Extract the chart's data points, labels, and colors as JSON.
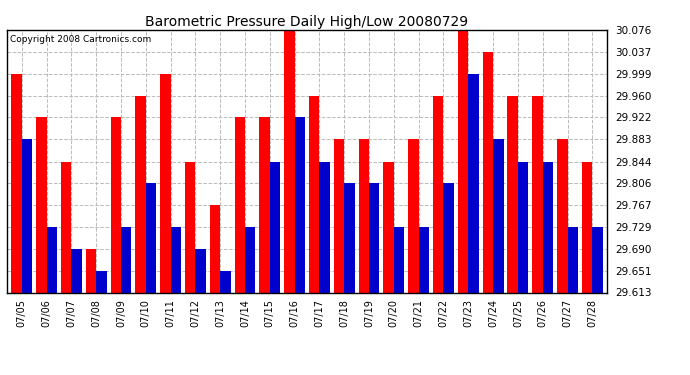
{
  "title": "Barometric Pressure Daily High/Low 20080729",
  "copyright": "Copyright 2008 Cartronics.com",
  "dates": [
    "07/05",
    "07/06",
    "07/07",
    "07/08",
    "07/09",
    "07/10",
    "07/11",
    "07/12",
    "07/13",
    "07/14",
    "07/15",
    "07/16",
    "07/17",
    "07/18",
    "07/19",
    "07/20",
    "07/21",
    "07/22",
    "07/23",
    "07/24",
    "07/25",
    "07/26",
    "07/27",
    "07/28"
  ],
  "highs": [
    29.999,
    29.922,
    29.844,
    29.69,
    29.922,
    29.96,
    29.999,
    29.844,
    29.767,
    29.922,
    29.922,
    30.076,
    29.96,
    29.883,
    29.883,
    29.844,
    29.883,
    29.96,
    30.076,
    30.037,
    29.96,
    29.96,
    29.883,
    29.844
  ],
  "lows": [
    29.883,
    29.729,
    29.69,
    29.651,
    29.729,
    29.806,
    29.729,
    29.69,
    29.651,
    29.729,
    29.844,
    29.922,
    29.844,
    29.806,
    29.806,
    29.729,
    29.729,
    29.806,
    29.999,
    29.883,
    29.844,
    29.844,
    29.729,
    29.729
  ],
  "high_color": "#ff0000",
  "low_color": "#0000cc",
  "bg_color": "#ffffff",
  "grid_color": "#bbbbbb",
  "yticks": [
    29.613,
    29.651,
    29.69,
    29.729,
    29.767,
    29.806,
    29.844,
    29.883,
    29.922,
    29.96,
    29.999,
    30.037,
    30.076
  ],
  "ymin": 29.613,
  "ymax": 30.076
}
